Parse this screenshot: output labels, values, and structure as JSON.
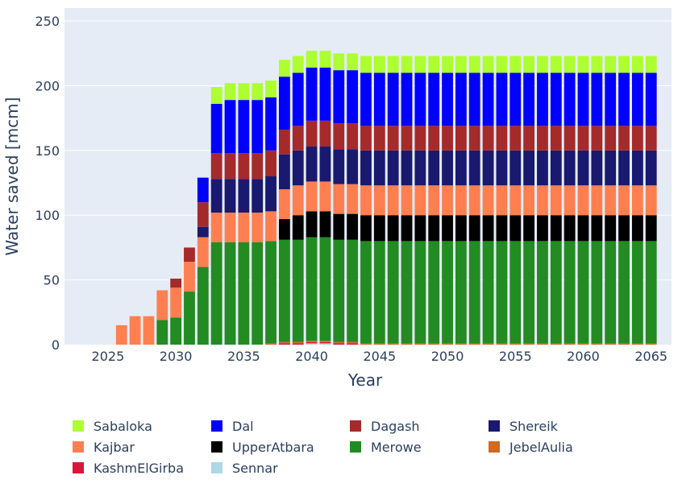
{
  "chart_data": {
    "type": "bar",
    "stacked": true,
    "xlabel": "Year",
    "ylabel": "Water saved [mcm]",
    "ylim": [
      0,
      260
    ],
    "yticks": [
      0,
      50,
      100,
      150,
      200,
      250
    ],
    "xticks": [
      2025,
      2030,
      2035,
      2040,
      2045,
      2050,
      2055,
      2060,
      2065
    ],
    "xlim": [
      2021.8,
      2066.5
    ],
    "grid": true,
    "legend_position": "bottom",
    "years": [
      2026,
      2027,
      2028,
      2029,
      2030,
      2031,
      2032,
      2033,
      2034,
      2035,
      2036,
      2037,
      2038,
      2039,
      2040,
      2041,
      2042,
      2043,
      2044,
      2045,
      2046,
      2047,
      2048,
      2049,
      2050,
      2051,
      2052,
      2053,
      2054,
      2055,
      2056,
      2057,
      2058,
      2059,
      2060,
      2061,
      2062,
      2063,
      2064,
      2065
    ],
    "series": [
      {
        "name": "Sennar",
        "color": "#add8e6",
        "values": [
          0,
          0,
          0,
          0,
          0,
          0,
          0,
          0,
          0,
          0,
          0,
          0,
          0,
          0,
          1,
          1,
          0,
          0,
          0,
          0,
          0,
          0,
          0,
          0,
          0,
          0,
          0,
          0,
          0,
          0,
          0,
          0,
          0,
          0,
          0,
          0,
          0,
          0,
          0,
          0
        ]
      },
      {
        "name": "KashmElGirba",
        "color": "#dc143c",
        "values": [
          0,
          0,
          0,
          0,
          0,
          0,
          0,
          0,
          0,
          0,
          0,
          0,
          1,
          1,
          1,
          1,
          1,
          1,
          0,
          0,
          0,
          0,
          0,
          0,
          0,
          0,
          0,
          0,
          0,
          0,
          0,
          0,
          0,
          0,
          0,
          0,
          0,
          0,
          0,
          0
        ]
      },
      {
        "name": "JebelAulia",
        "color": "#d2691e",
        "values": [
          0,
          0,
          0,
          0,
          0,
          0,
          0,
          0,
          0,
          0,
          0,
          1,
          1,
          1,
          1,
          1,
          1,
          1,
          1,
          1,
          1,
          1,
          1,
          1,
          1,
          1,
          1,
          1,
          1,
          1,
          1,
          1,
          1,
          1,
          1,
          1,
          1,
          1,
          1,
          1
        ]
      },
      {
        "name": "Merowe",
        "color": "#228b22",
        "values": [
          0,
          0,
          0,
          19,
          21,
          41,
          60,
          79,
          79,
          79,
          79,
          79,
          79,
          79,
          80,
          80,
          79,
          79,
          79,
          79,
          79,
          79,
          79,
          79,
          79,
          79,
          79,
          79,
          79,
          79,
          79,
          79,
          79,
          79,
          79,
          79,
          79,
          79,
          79,
          79
        ]
      },
      {
        "name": "UpperAtbara",
        "color": "#000000",
        "values": [
          0,
          0,
          0,
          0,
          0,
          0,
          0,
          0,
          0,
          0,
          0,
          0,
          16,
          19,
          20,
          20,
          20,
          20,
          20,
          20,
          20,
          20,
          20,
          20,
          20,
          20,
          20,
          20,
          20,
          20,
          20,
          20,
          20,
          20,
          20,
          20,
          20,
          20,
          20,
          20
        ]
      },
      {
        "name": "Kajbar",
        "color": "#ff7f50",
        "values": [
          15,
          22,
          22,
          23,
          23,
          23,
          23,
          23,
          23,
          23,
          23,
          23,
          23,
          23,
          23,
          23,
          23,
          23,
          23,
          23,
          23,
          23,
          23,
          23,
          23,
          23,
          23,
          23,
          23,
          23,
          23,
          23,
          23,
          23,
          23,
          23,
          23,
          23,
          23,
          23
        ]
      },
      {
        "name": "Shereik",
        "color": "#191970",
        "values": [
          0,
          0,
          0,
          0,
          0,
          0,
          8,
          26,
          26,
          26,
          26,
          27,
          27,
          27,
          27,
          27,
          27,
          27,
          27,
          27,
          27,
          27,
          27,
          27,
          27,
          27,
          27,
          27,
          27,
          27,
          27,
          27,
          27,
          27,
          27,
          27,
          27,
          27,
          27,
          27
        ]
      },
      {
        "name": "Dagash",
        "color": "#a52a2a",
        "values": [
          0,
          0,
          0,
          0,
          7,
          11,
          19,
          20,
          20,
          20,
          20,
          20,
          19,
          19,
          20,
          20,
          20,
          20,
          19,
          19,
          19,
          19,
          19,
          19,
          19,
          19,
          19,
          19,
          19,
          19,
          19,
          19,
          19,
          19,
          19,
          19,
          19,
          19,
          19,
          19
        ]
      },
      {
        "name": "Dal",
        "color": "#0000ff",
        "values": [
          0,
          0,
          0,
          0,
          0,
          0,
          19,
          38,
          41,
          41,
          41,
          41,
          41,
          41,
          41,
          41,
          41,
          41,
          41,
          41,
          41,
          41,
          41,
          41,
          41,
          41,
          41,
          41,
          41,
          41,
          41,
          41,
          41,
          41,
          41,
          41,
          41,
          41,
          41,
          41
        ]
      },
      {
        "name": "Sabaloka",
        "color": "#adff2f",
        "values": [
          0,
          0,
          0,
          0,
          0,
          0,
          0,
          13,
          13,
          13,
          13,
          13,
          13,
          13,
          13,
          13,
          13,
          13,
          13,
          13,
          13,
          13,
          13,
          13,
          13,
          13,
          13,
          13,
          13,
          13,
          13,
          13,
          13,
          13,
          13,
          13,
          13,
          13,
          13,
          13
        ]
      }
    ],
    "legend_order": [
      "Sabaloka",
      "Dal",
      "Dagash",
      "Shereik",
      "Kajbar",
      "UpperAtbara",
      "Merowe",
      "JebelAulia",
      "KashmElGirba",
      "Sennar"
    ]
  },
  "style": {
    "plot_bg": "#e5ecf6",
    "grid_color": "#ffffff",
    "text_color": "#2a3f5f"
  }
}
